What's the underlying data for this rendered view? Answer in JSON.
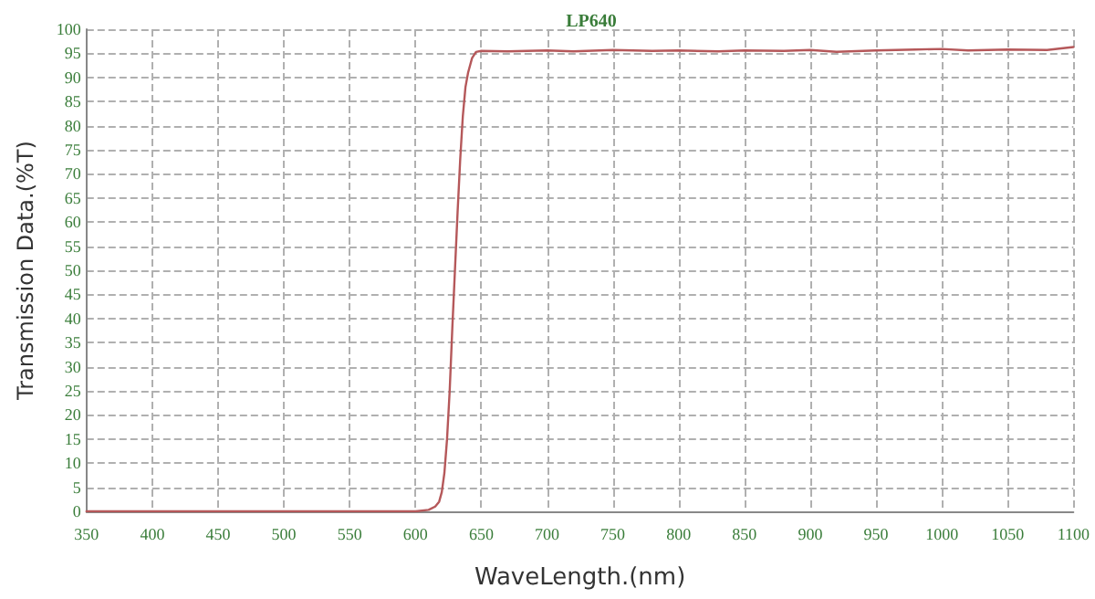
{
  "chart_data": {
    "type": "line",
    "title": "LP640",
    "xlabel": "WaveLength.(nm)",
    "ylabel": "Transmission Data.(%T)",
    "series": [
      {
        "color": "#b5585a",
        "x": [
          350,
          400,
          450,
          500,
          550,
          600,
          610,
          615,
          618,
          620,
          622,
          624,
          626,
          628,
          630,
          632,
          634,
          636,
          638,
          640,
          643,
          646,
          650,
          670,
          700,
          720,
          750,
          780,
          800,
          830,
          850,
          880,
          900,
          920,
          950,
          980,
          1000,
          1020,
          1050,
          1080,
          1100
        ],
        "values": [
          0,
          0,
          0,
          0,
          0,
          0,
          0.3,
          1,
          2,
          4,
          8,
          15,
          25,
          38,
          50,
          62,
          73,
          82,
          88,
          91,
          94,
          95.3,
          95.5,
          95.4,
          95.6,
          95.4,
          95.7,
          95.5,
          95.6,
          95.4,
          95.6,
          95.5,
          95.7,
          95.3,
          95.6,
          95.8,
          95.9,
          95.6,
          95.8,
          95.7,
          96.3
        ]
      }
    ],
    "xlim": [
      350,
      1100
    ],
    "xticks": [
      350,
      400,
      450,
      500,
      550,
      600,
      650,
      700,
      750,
      800,
      850,
      900,
      950,
      1000,
      1050,
      1100
    ],
    "ylim": [
      0,
      100
    ],
    "yticks": [
      0,
      5,
      10,
      15,
      20,
      25,
      30,
      35,
      40,
      45,
      50,
      55,
      60,
      65,
      70,
      75,
      80,
      85,
      90,
      95,
      100
    ],
    "grid": true,
    "marker": "none",
    "line_style": "solid"
  }
}
